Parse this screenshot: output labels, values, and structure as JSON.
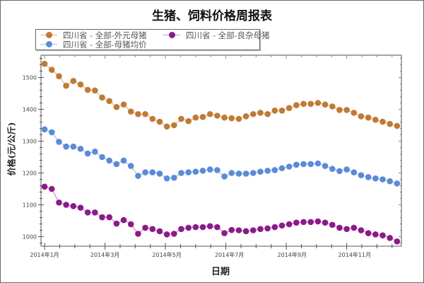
{
  "chart_data": {
    "type": "line",
    "title": "生猪、饲料价格周报表",
    "xlabel": "日期",
    "ylabel": "价格(元/公斤)",
    "ylim": [
      970,
      1570
    ],
    "yticks": [
      1000,
      1100,
      1200,
      1300,
      1400,
      1500
    ],
    "xticks": [
      {
        "label": "2014年1月",
        "week": 0
      },
      {
        "label": "2014年3月",
        "week": 8.4
      },
      {
        "label": "2014年5月",
        "week": 17
      },
      {
        "label": "2014年7月",
        "week": 25.7
      },
      {
        "label": "2014年9月",
        "week": 34.4
      },
      {
        "label": "2014年11月",
        "week": 43.1
      }
    ],
    "xlim": [
      -0.5,
      49.6
    ],
    "grid": false,
    "legend_position": "top-left",
    "x_unit": "week index from 2014-01-01 (weekly observations)",
    "series": [
      {
        "name": "四川省 - 全部-外元母猪",
        "color": "#c07a35",
        "line_color": "#e3b48a",
        "values": [
          1543,
          1524,
          1504,
          1474,
          1489,
          1478,
          1461,
          1459,
          1437,
          1426,
          1407,
          1415,
          1393,
          1385,
          1385,
          1370,
          1361,
          1346,
          1350,
          1370,
          1363,
          1374,
          1376,
          1385,
          1380,
          1374,
          1372,
          1370,
          1378,
          1385,
          1389,
          1385,
          1396,
          1396,
          1404,
          1413,
          1417,
          1417,
          1420,
          1415,
          1409,
          1398,
          1398,
          1389,
          1378,
          1374,
          1367,
          1361,
          1354,
          1348
        ]
      },
      {
        "name": "四川省 - 全部-良杂母猪",
        "color": "#8b1a8b",
        "line_color": "#c98ac9",
        "values": [
          1157,
          1150,
          1107,
          1100,
          1096,
          1091,
          1076,
          1076,
          1061,
          1061,
          1041,
          1052,
          1039,
          1009,
          1028,
          1024,
          1017,
          1007,
          1009,
          1024,
          1028,
          1030,
          1030,
          1033,
          1030,
          1011,
          1021,
          1020,
          1017,
          1020,
          1024,
          1026,
          1030,
          1035,
          1039,
          1044,
          1046,
          1046,
          1048,
          1044,
          1037,
          1028,
          1024,
          1028,
          1020,
          1011,
          1007,
          1004,
          996,
          985
        ]
      },
      {
        "name": "四川省 - 全部-母猪均价",
        "color": "#5b8bd8",
        "line_color": "#a8c2ea",
        "values": [
          1337,
          1328,
          1298,
          1283,
          1283,
          1276,
          1261,
          1267,
          1250,
          1239,
          1228,
          1239,
          1222,
          1191,
          1202,
          1202,
          1198,
          1183,
          1185,
          1200,
          1202,
          1204,
          1207,
          1211,
          1209,
          1189,
          1200,
          1198,
          1198,
          1200,
          1204,
          1207,
          1209,
          1215,
          1220,
          1226,
          1228,
          1228,
          1230,
          1222,
          1213,
          1206,
          1211,
          1202,
          1193,
          1187,
          1183,
          1180,
          1174,
          1167
        ]
      }
    ],
    "legend": [
      {
        "label": "四川省 - 全部-外元母猪",
        "series": 0
      },
      {
        "label": "四川省 - 全部-良杂母猪",
        "series": 1
      },
      {
        "label": "四川省 - 全部-母猪均价",
        "series": 2
      }
    ]
  }
}
